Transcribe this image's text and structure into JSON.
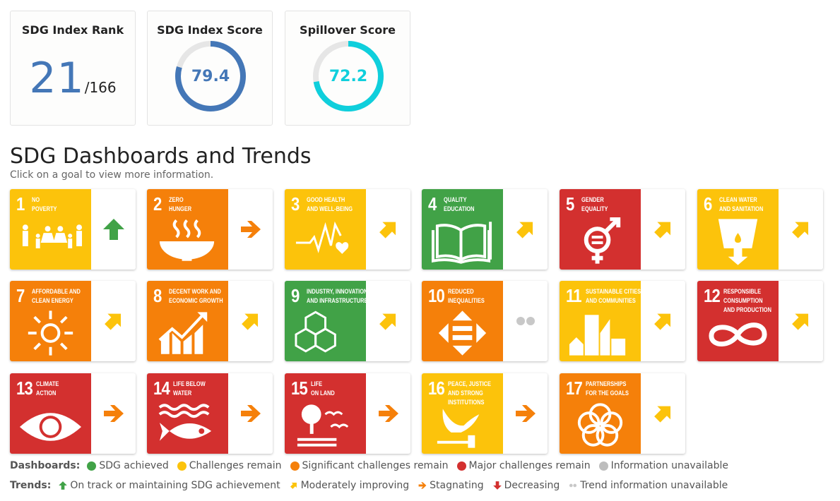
{
  "stats": {
    "rank": {
      "title": "SDG Index Rank",
      "value": "21",
      "total": "/166",
      "color": "#4477b7"
    },
    "index_score": {
      "title": "SDG Index Score",
      "value": "79.4",
      "percent": 79.4,
      "color": "#4477b7"
    },
    "spillover_score": {
      "title": "Spillover Score",
      "value": "72.2",
      "percent": 72.2,
      "color": "#0fcfdc"
    }
  },
  "section": {
    "title": "SDG Dashboards and Trends",
    "subtitle": "Click on a goal to view more information."
  },
  "goals": [
    {
      "num": "1",
      "label1": "No",
      "label2": "Poverty",
      "label3": "",
      "color": "#fcc30b",
      "trend": "up",
      "icon": "family-icon"
    },
    {
      "num": "2",
      "label1": "Zero",
      "label2": "Hunger",
      "label3": "",
      "color": "#f5800a",
      "trend": "right",
      "icon": "bowl-icon"
    },
    {
      "num": "3",
      "label1": "Good Health",
      "label2": "and Well-Being",
      "label3": "",
      "color": "#fcc30b",
      "trend": "diag",
      "icon": "heartbeat-icon"
    },
    {
      "num": "4",
      "label1": "Quality",
      "label2": "Education",
      "label3": "",
      "color": "#41a247",
      "trend": "diag",
      "icon": "book-icon"
    },
    {
      "num": "5",
      "label1": "Gender",
      "label2": "Equality",
      "label3": "",
      "color": "#d3302f",
      "trend": "diag",
      "icon": "gender-icon"
    },
    {
      "num": "6",
      "label1": "Clean Water",
      "label2": "and Sanitation",
      "label3": "",
      "color": "#fcc30b",
      "trend": "diag",
      "icon": "water-glass-icon"
    },
    {
      "num": "7",
      "label1": "Affordable and",
      "label2": "Clean Energy",
      "label3": "",
      "color": "#f5800a",
      "trend": "diag",
      "icon": "sun-power-icon"
    },
    {
      "num": "8",
      "label1": "Decent Work and",
      "label2": "Economic Growth",
      "label3": "",
      "color": "#f5800a",
      "trend": "diag",
      "icon": "growth-chart-icon"
    },
    {
      "num": "9",
      "label1": "Industry, Innovation",
      "label2": "and Infrastructure",
      "label3": "",
      "color": "#41a247",
      "trend": "diag",
      "icon": "cubes-icon"
    },
    {
      "num": "10",
      "label1": "Reduced",
      "label2": "Inequalities",
      "label3": "",
      "color": "#f5800a",
      "trend": "na",
      "icon": "equality-arrows-icon"
    },
    {
      "num": "11",
      "label1": "Sustainable Cities",
      "label2": "and Communities",
      "label3": "",
      "color": "#fcc30b",
      "trend": "diag",
      "icon": "city-icon"
    },
    {
      "num": "12",
      "label1": "Responsible",
      "label2": "Consumption",
      "label3": "and Production",
      "color": "#d3302f",
      "trend": "diag",
      "icon": "infinity-icon"
    },
    {
      "num": "13",
      "label1": "Climate",
      "label2": "Action",
      "label3": "",
      "color": "#d3302f",
      "trend": "right",
      "icon": "eye-globe-icon"
    },
    {
      "num": "14",
      "label1": "Life Below",
      "label2": "Water",
      "label3": "",
      "color": "#d3302f",
      "trend": "right",
      "icon": "fish-icon"
    },
    {
      "num": "15",
      "label1": "Life",
      "label2": "on Land",
      "label3": "",
      "color": "#d3302f",
      "trend": "right",
      "icon": "tree-birds-icon"
    },
    {
      "num": "16",
      "label1": "Peace, Justice",
      "label2": "and Strong",
      "label3": "Institutions",
      "color": "#fcc30b",
      "trend": "right",
      "icon": "dove-gavel-icon"
    },
    {
      "num": "17",
      "label1": "Partnerships",
      "label2": "for the Goals",
      "label3": "",
      "color": "#f5800a",
      "trend": "diag",
      "icon": "rings-icon"
    }
  ],
  "legend": {
    "dashboards_label": "Dashboards:",
    "dashboards": [
      {
        "label": "SDG achieved",
        "color": "#41a247"
      },
      {
        "label": "Challenges remain",
        "color": "#fcc30b"
      },
      {
        "label": "Significant challenges remain",
        "color": "#f5800a"
      },
      {
        "label": "Major challenges remain",
        "color": "#d3302f"
      },
      {
        "label": "Information unavailable",
        "color": "#bdbdbd"
      }
    ],
    "trends_label": "Trends:",
    "trends": [
      {
        "label": "On track or maintaining SDG achievement",
        "icon": "up",
        "color": "#41a247"
      },
      {
        "label": "Moderately improving",
        "icon": "diag",
        "color": "#fcc30b"
      },
      {
        "label": "Stagnating",
        "icon": "right",
        "color": "#f5800a"
      },
      {
        "label": "Decreasing",
        "icon": "down",
        "color": "#d3302f"
      },
      {
        "label": "Trend information unavailable",
        "icon": "na",
        "color": "#bdbdbd"
      }
    ]
  }
}
